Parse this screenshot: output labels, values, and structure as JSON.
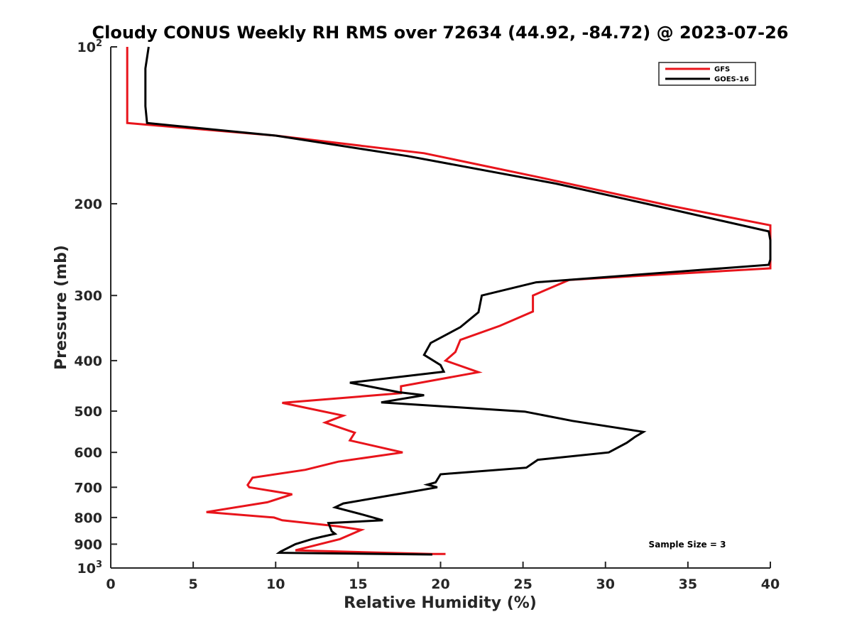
{
  "chart_data": {
    "type": "line",
    "title": "Cloudy CONUS Weekly RH RMS over 72634 (44.92, -84.72) @ 2023-07-26",
    "xlabel": "Relative Humidity (%)",
    "ylabel": "Pressure (mb)",
    "xlim": [
      0,
      40
    ],
    "ylim": [
      100,
      1000
    ],
    "y_scale": "log",
    "y_reversed": true,
    "grid": false,
    "legend_position": "top-right",
    "x_ticks": [
      "0",
      "5",
      "10",
      "15",
      "20",
      "25",
      "30",
      "35",
      "40"
    ],
    "y_ticks": [
      {
        "value": 100,
        "base": "10",
        "exp": "2"
      },
      {
        "value": 200,
        "label": "200"
      },
      {
        "value": 300,
        "label": "300"
      },
      {
        "value": 400,
        "label": "400"
      },
      {
        "value": 500,
        "label": "500"
      },
      {
        "value": 600,
        "label": "600"
      },
      {
        "value": 700,
        "label": "700"
      },
      {
        "value": 800,
        "label": "800"
      },
      {
        "value": 900,
        "label": "900"
      },
      {
        "value": 1000,
        "base": "10",
        "exp": "3"
      }
    ],
    "annotation": "Sample Size = 3",
    "series": [
      {
        "name": "GFS",
        "color": "#e8141b",
        "points": [
          [
            1.0,
            100
          ],
          [
            1.0,
            110
          ],
          [
            1.0,
            120
          ],
          [
            1.0,
            130
          ],
          [
            1.0,
            140
          ],
          [
            10.0,
            148
          ],
          [
            19.0,
            160
          ],
          [
            26.0,
            178
          ],
          [
            34.0,
            202
          ],
          [
            40.0,
            220
          ],
          [
            40.0,
            240
          ],
          [
            40.0,
            266
          ],
          [
            27.8,
            280
          ],
          [
            25.6,
            300
          ],
          [
            25.6,
            322
          ],
          [
            23.6,
            343
          ],
          [
            21.2,
            365
          ],
          [
            20.9,
            385
          ],
          [
            20.3,
            400
          ],
          [
            22.3,
            421
          ],
          [
            17.6,
            448
          ],
          [
            17.6,
            462
          ],
          [
            10.4,
            482
          ],
          [
            14.1,
            510
          ],
          [
            13.0,
            526
          ],
          [
            14.8,
            550
          ],
          [
            14.5,
            569
          ],
          [
            17.7,
            600
          ],
          [
            13.8,
            625
          ],
          [
            11.8,
            648
          ],
          [
            8.6,
            671
          ],
          [
            8.3,
            693
          ],
          [
            8.4,
            700
          ],
          [
            11.0,
            722
          ],
          [
            9.5,
            748
          ],
          [
            5.8,
            781
          ],
          [
            9.9,
            800
          ],
          [
            10.4,
            810
          ],
          [
            13.8,
            832
          ],
          [
            15.2,
            845
          ],
          [
            13.9,
            880
          ],
          [
            11.2,
            925
          ],
          [
            19.5,
            940
          ],
          [
            20.3,
            940
          ]
        ]
      },
      {
        "name": "GOES-16",
        "color": "#000000",
        "points": [
          [
            2.3,
            100
          ],
          [
            2.1,
            110
          ],
          [
            2.1,
            120
          ],
          [
            2.1,
            130
          ],
          [
            2.2,
            140
          ],
          [
            10.0,
            148
          ],
          [
            18.0,
            162
          ],
          [
            27.0,
            183
          ],
          [
            32.5,
            200
          ],
          [
            39.9,
            226
          ],
          [
            40.0,
            235
          ],
          [
            40.0,
            256
          ],
          [
            39.9,
            262
          ],
          [
            25.8,
            283
          ],
          [
            22.5,
            300
          ],
          [
            22.3,
            323
          ],
          [
            21.2,
            345
          ],
          [
            19.4,
            370
          ],
          [
            19.0,
            390
          ],
          [
            20.0,
            408
          ],
          [
            20.2,
            420
          ],
          [
            14.5,
            441
          ],
          [
            17.5,
            460
          ],
          [
            19.0,
            466
          ],
          [
            16.4,
            481
          ],
          [
            25.1,
            501
          ],
          [
            28.0,
            522
          ],
          [
            32.3,
            548
          ],
          [
            31.8,
            560
          ],
          [
            31.3,
            575
          ],
          [
            30.2,
            600
          ],
          [
            25.9,
            620
          ],
          [
            25.2,
            642
          ],
          [
            20.0,
            661
          ],
          [
            19.7,
            685
          ],
          [
            19.2,
            692
          ],
          [
            19.8,
            700
          ],
          [
            17.8,
            718
          ],
          [
            14.1,
            752
          ],
          [
            13.6,
            765
          ],
          [
            15.3,
            790
          ],
          [
            16.5,
            810
          ],
          [
            13.2,
            820
          ],
          [
            13.4,
            850
          ],
          [
            13.6,
            860
          ],
          [
            12.8,
            871
          ],
          [
            12.2,
            880
          ],
          [
            11.2,
            900
          ],
          [
            10.3,
            930
          ],
          [
            10.2,
            935
          ],
          [
            19.5,
            942
          ]
        ]
      }
    ]
  }
}
